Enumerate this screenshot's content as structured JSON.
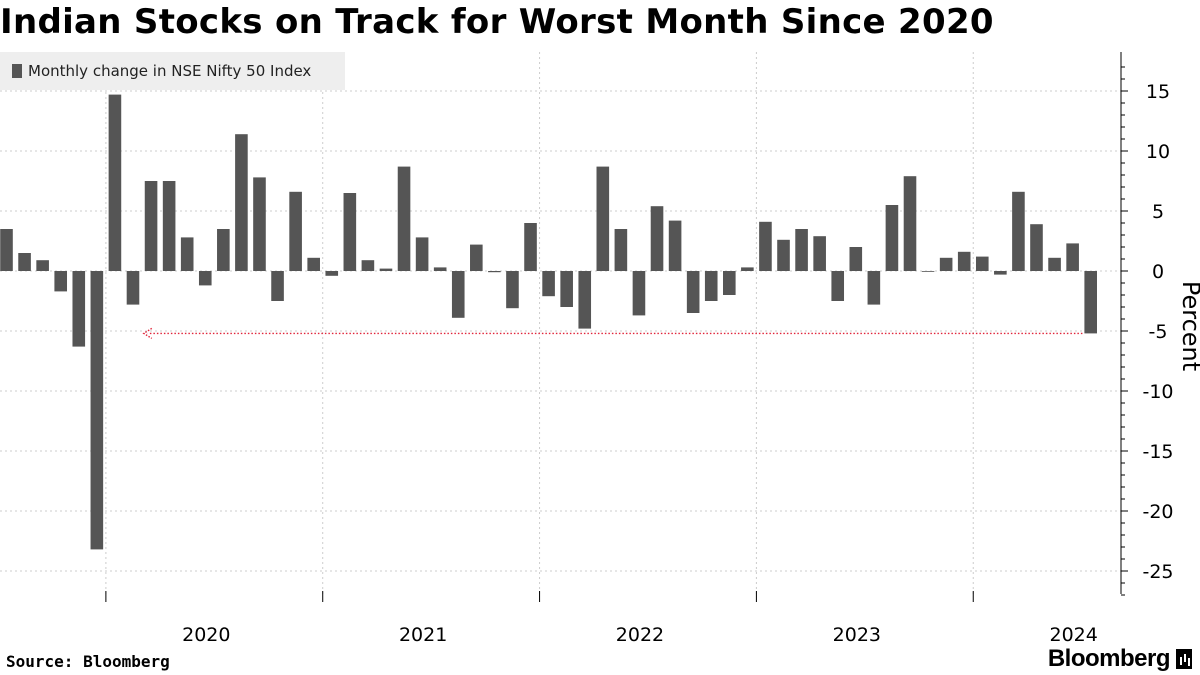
{
  "title": "Indian Stocks on Track for Worst Month Since 2020",
  "source": "Source: Bloomberg",
  "brand": "Bloomberg",
  "colors": {
    "bar": "#555555",
    "grid": "#cccccc",
    "annotation": "#e0243a",
    "legend_bg": "#eeeeee"
  },
  "chart_data": {
    "type": "bar",
    "title": "Indian Stocks on Track for Worst Month Since 2020",
    "ylabel": "Percent",
    "ylim": [
      -27,
      18
    ],
    "yticks": [
      15,
      10,
      5,
      0,
      -5,
      -10,
      -15,
      -20,
      -25
    ],
    "year_labels": [
      "2020",
      "2021",
      "2022",
      "2023",
      "2024"
    ],
    "start_month": "2019-07",
    "grid": true,
    "legend_position": "top-left",
    "series": [
      {
        "name": "Monthly change in NSE Nifty 50 Index",
        "values": [
          3.5,
          1.5,
          0.9,
          -1.7,
          -6.3,
          -23.2,
          14.7,
          -2.8,
          7.5,
          7.5,
          2.8,
          -1.2,
          3.5,
          11.4,
          7.8,
          -2.5,
          6.6,
          1.1,
          -0.4,
          6.5,
          0.9,
          0.2,
          8.7,
          2.8,
          0.3,
          -3.9,
          2.2,
          -0.1,
          -3.1,
          4.0,
          -2.1,
          -3.0,
          -4.8,
          8.7,
          3.5,
          -3.7,
          5.4,
          4.2,
          -3.5,
          -2.5,
          -2.0,
          0.3,
          4.1,
          2.6,
          3.5,
          2.9,
          -2.5,
          2.0,
          -2.8,
          5.5,
          7.9,
          0.0,
          1.1,
          1.6,
          1.2,
          -0.3,
          6.6,
          3.9,
          1.1,
          2.3,
          -5.2
        ]
      }
    ],
    "annotation": {
      "type": "arrow",
      "value": -5.2,
      "from": "last",
      "to": "2020-03",
      "color": "#e0243a"
    }
  }
}
